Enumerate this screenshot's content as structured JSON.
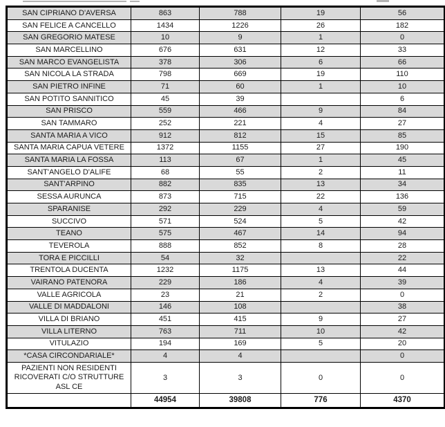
{
  "document": {
    "description_note": "",
    "colors": {
      "row_shade": "#d9d9d9",
      "border": "#000000",
      "text": "#1b1b1b",
      "background": "#ffffff"
    }
  },
  "table": {
    "rows": [
      {
        "name": "SAN CIPRIANO D'AVERSA",
        "values": [
          "863",
          "788",
          "19",
          "56"
        ],
        "shaded": true,
        "tall": false
      },
      {
        "name": "SAN FELICE A CANCELLO",
        "values": [
          "1434",
          "1226",
          "26",
          "182"
        ],
        "shaded": false,
        "tall": false
      },
      {
        "name": "SAN GREGORIO MATESE",
        "values": [
          "10",
          "9",
          "1",
          "0"
        ],
        "shaded": true,
        "tall": false
      },
      {
        "name": "SAN MARCELLINO",
        "values": [
          "676",
          "631",
          "12",
          "33"
        ],
        "shaded": false,
        "tall": false
      },
      {
        "name": "SAN MARCO EVANGELISTA",
        "values": [
          "378",
          "306",
          "6",
          "66"
        ],
        "shaded": true,
        "tall": false
      },
      {
        "name": "SAN NICOLA LA STRADA",
        "values": [
          "798",
          "669",
          "19",
          "110"
        ],
        "shaded": false,
        "tall": false
      },
      {
        "name": "SAN PIETRO INFINE",
        "values": [
          "71",
          "60",
          "1",
          "10"
        ],
        "shaded": true,
        "tall": false
      },
      {
        "name": "SAN POTITO SANNITICO",
        "values": [
          "45",
          "39",
          "",
          "6"
        ],
        "shaded": false,
        "tall": false
      },
      {
        "name": "SAN PRISCO",
        "values": [
          "559",
          "466",
          "9",
          "84"
        ],
        "shaded": true,
        "tall": false
      },
      {
        "name": "SAN TAMMARO",
        "values": [
          "252",
          "221",
          "4",
          "27"
        ],
        "shaded": false,
        "tall": false
      },
      {
        "name": "SANTA MARIA A VICO",
        "values": [
          "912",
          "812",
          "15",
          "85"
        ],
        "shaded": true,
        "tall": false
      },
      {
        "name": "SANTA MARIA CAPUA VETERE",
        "values": [
          "1372",
          "1155",
          "27",
          "190"
        ],
        "shaded": false,
        "tall": false
      },
      {
        "name": "SANTA MARIA LA FOSSA",
        "values": [
          "113",
          "67",
          "1",
          "45"
        ],
        "shaded": true,
        "tall": false
      },
      {
        "name": "SANT'ANGELO D'ALIFE",
        "values": [
          "68",
          "55",
          "2",
          "11"
        ],
        "shaded": false,
        "tall": false
      },
      {
        "name": "SANT'ARPINO",
        "values": [
          "882",
          "835",
          "13",
          "34"
        ],
        "shaded": true,
        "tall": false
      },
      {
        "name": "SESSA AURUNCA",
        "values": [
          "873",
          "715",
          "22",
          "136"
        ],
        "shaded": false,
        "tall": false
      },
      {
        "name": "SPARANISE",
        "values": [
          "292",
          "229",
          "4",
          "59"
        ],
        "shaded": true,
        "tall": false
      },
      {
        "name": "SUCCIVO",
        "values": [
          "571",
          "524",
          "5",
          "42"
        ],
        "shaded": false,
        "tall": false
      },
      {
        "name": "TEANO",
        "values": [
          "575",
          "467",
          "14",
          "94"
        ],
        "shaded": true,
        "tall": false
      },
      {
        "name": "TEVEROLA",
        "values": [
          "888",
          "852",
          "8",
          "28"
        ],
        "shaded": false,
        "tall": false
      },
      {
        "name": "TORA E PICCILLI",
        "values": [
          "54",
          "32",
          "",
          "22"
        ],
        "shaded": true,
        "tall": false
      },
      {
        "name": "TRENTOLA DUCENTA",
        "values": [
          "1232",
          "1175",
          "13",
          "44"
        ],
        "shaded": false,
        "tall": false
      },
      {
        "name": "VAIRANO PATENORA",
        "values": [
          "229",
          "186",
          "4",
          "39"
        ],
        "shaded": true,
        "tall": false
      },
      {
        "name": "VALLE AGRICOLA",
        "values": [
          "23",
          "21",
          "2",
          "0"
        ],
        "shaded": false,
        "tall": false
      },
      {
        "name": "VALLE DI MADDALONI",
        "values": [
          "146",
          "108",
          "",
          "38"
        ],
        "shaded": true,
        "tall": false
      },
      {
        "name": "VILLA DI BRIANO",
        "values": [
          "451",
          "415",
          "9",
          "27"
        ],
        "shaded": false,
        "tall": false
      },
      {
        "name": "VILLA LITERNO",
        "values": [
          "763",
          "711",
          "10",
          "42"
        ],
        "shaded": true,
        "tall": false
      },
      {
        "name": "VITULAZIO",
        "values": [
          "194",
          "169",
          "5",
          "20"
        ],
        "shaded": false,
        "tall": false
      },
      {
        "name": "*CASA CIRCONDARIALE*",
        "values": [
          "4",
          "4",
          "",
          "0"
        ],
        "shaded": true,
        "tall": false
      },
      {
        "name": "PAZIENTI NON RESIDENTI RICOVERATI C/O STRUTTURE ASL CE",
        "values": [
          "3",
          "3",
          "0",
          "0"
        ],
        "shaded": false,
        "tall": true
      }
    ],
    "totals": {
      "name": "",
      "values": [
        "44954",
        "39808",
        "776",
        "4370"
      ]
    }
  }
}
